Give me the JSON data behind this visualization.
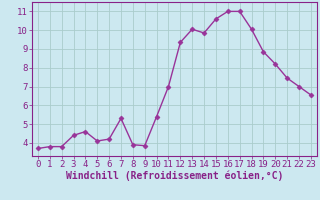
{
  "x": [
    0,
    1,
    2,
    3,
    4,
    5,
    6,
    7,
    8,
    9,
    10,
    11,
    12,
    13,
    14,
    15,
    16,
    17,
    18,
    19,
    20,
    21,
    22,
    23
  ],
  "y": [
    3.7,
    3.8,
    3.8,
    4.4,
    4.6,
    4.1,
    4.2,
    5.3,
    3.9,
    3.85,
    5.4,
    7.0,
    9.35,
    10.05,
    9.85,
    10.6,
    11.0,
    11.0,
    10.05,
    8.85,
    8.2,
    7.45,
    7.0,
    6.55
  ],
  "line_color": "#993399",
  "marker": "D",
  "markersize": 2.5,
  "linewidth": 1.0,
  "xlabel": "Windchill (Refroidissement éolien,°C)",
  "xlim": [
    -0.5,
    23.5
  ],
  "ylim": [
    3.3,
    11.5
  ],
  "yticks": [
    4,
    5,
    6,
    7,
    8,
    9,
    10,
    11
  ],
  "xticks": [
    0,
    1,
    2,
    3,
    4,
    5,
    6,
    7,
    8,
    9,
    10,
    11,
    12,
    13,
    14,
    15,
    16,
    17,
    18,
    19,
    20,
    21,
    22,
    23
  ],
  "background_color": "#cce8f0",
  "grid_color": "#aacccc",
  "tick_label_fontsize": 6.5,
  "xlabel_fontsize": 7.0,
  "spine_color": "#882288",
  "text_color": "#882288"
}
